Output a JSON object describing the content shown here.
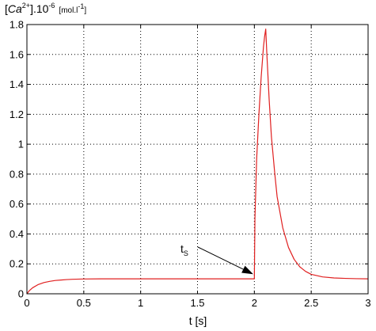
{
  "chart_data": {
    "type": "line",
    "ylabel": {
      "lead": "[",
      "ion": "Ca",
      "charge": "2+",
      "mid": "].10",
      "exp": "-6",
      "unit_open": "[mol.l",
      "unit_exp": "-1",
      "unit_close": "]"
    },
    "xlabel": "t [s]",
    "xlim": [
      0,
      3
    ],
    "ylim": [
      0,
      1.8
    ],
    "xticks": [
      "0",
      "0.5",
      "1",
      "1.5",
      "2",
      "2.5",
      "3"
    ],
    "yticks": [
      "0",
      "0.2",
      "0.4",
      "0.6",
      "0.8",
      "1",
      "1.2",
      "1.4",
      "1.6",
      "1.8"
    ],
    "grid": true,
    "series": [
      {
        "color": "#e02020",
        "x": [
          0,
          0.02,
          0.05,
          0.1,
          0.15,
          0.2,
          0.25,
          0.3,
          0.35,
          0.4,
          0.5,
          0.7,
          1.0,
          1.5,
          1.99,
          2.0,
          2.005,
          2.02,
          2.04,
          2.06,
          2.08,
          2.09,
          2.1,
          2.11,
          2.13,
          2.15,
          2.18,
          2.2,
          2.25,
          2.3,
          2.35,
          2.4,
          2.45,
          2.5,
          2.6,
          2.7,
          2.8,
          2.9,
          3.0
        ],
        "y": [
          0,
          0.02,
          0.04,
          0.062,
          0.075,
          0.083,
          0.089,
          0.092,
          0.095,
          0.097,
          0.099,
          0.1,
          0.1,
          0.1,
          0.1,
          0.1,
          0.5,
          0.9,
          1.2,
          1.45,
          1.65,
          1.72,
          1.77,
          1.6,
          1.3,
          1.05,
          0.8,
          0.65,
          0.44,
          0.31,
          0.23,
          0.18,
          0.15,
          0.13,
          0.113,
          0.106,
          0.103,
          0.101,
          0.1
        ]
      }
    ],
    "annotations": [
      {
        "text": "t",
        "subscript": "S",
        "arrow_to": [
          1.99,
          0.11
        ]
      }
    ]
  }
}
